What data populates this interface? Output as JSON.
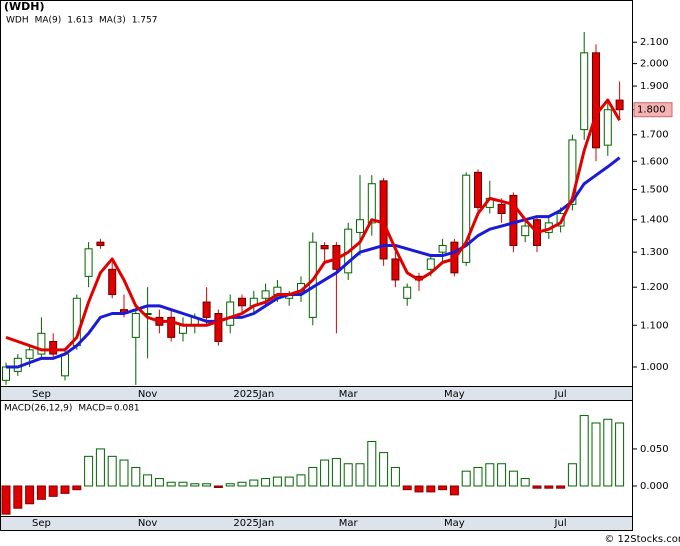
{
  "chart_data": [
    {
      "type": "candlestick",
      "title": "(WDH)",
      "ticker": "WDH",
      "ticker_color": "#008000",
      "categories": [
        null,
        null,
        null,
        "Sep",
        null,
        null,
        null,
        null,
        null,
        null,
        null,
        null,
        "Nov",
        null,
        null,
        null,
        null,
        null,
        null,
        null,
        null,
        "2025Jan",
        null,
        null,
        null,
        null,
        null,
        null,
        null,
        "Mar",
        null,
        null,
        null,
        null,
        null,
        null,
        null,
        null,
        "May",
        null,
        null,
        null,
        null,
        null,
        null,
        null,
        null,
        "Jul",
        null,
        null,
        null,
        null,
        null
      ],
      "open": [
        0.97,
        0.99,
        1.02,
        1.03,
        1.06,
        0.98,
        1.05,
        1.23,
        1.33,
        1.25,
        1.14,
        1.07,
        1.13,
        1.12,
        1.12,
        1.08,
        1.1,
        1.16,
        1.13,
        1.1,
        1.17,
        1.15,
        1.17,
        1.18,
        1.17,
        1.19,
        1.12,
        1.32,
        1.32,
        1.24,
        1.36,
        1.39,
        1.53,
        1.28,
        1.17,
        1.23,
        1.25,
        1.3,
        1.33,
        1.27,
        1.56,
        1.44,
        1.45,
        1.48,
        1.35,
        1.4,
        1.36,
        1.38,
        1.45,
        1.72,
        2.05,
        1.66,
        1.84
      ],
      "high": [
        1.01,
        1.03,
        1.05,
        1.12,
        1.08,
        1.04,
        1.18,
        1.33,
        1.34,
        1.27,
        1.18,
        1.14,
        1.2,
        1.14,
        1.14,
        1.12,
        1.13,
        1.2,
        1.14,
        1.18,
        1.18,
        1.19,
        1.21,
        1.22,
        1.19,
        1.23,
        1.36,
        1.33,
        1.33,
        1.39,
        1.55,
        1.55,
        1.54,
        1.3,
        1.21,
        1.24,
        1.29,
        1.34,
        1.34,
        1.56,
        1.57,
        1.53,
        1.47,
        1.49,
        1.4,
        1.41,
        1.41,
        1.44,
        1.7,
        2.15,
        2.09,
        1.83,
        1.92
      ],
      "low": [
        0.96,
        0.98,
        1.0,
        1.02,
        1.02,
        0.97,
        1.04,
        1.2,
        1.31,
        1.17,
        1.12,
        0.96,
        1.02,
        1.08,
        1.06,
        1.06,
        1.08,
        1.1,
        1.05,
        1.08,
        1.13,
        1.13,
        1.15,
        1.16,
        1.15,
        1.16,
        1.1,
        1.27,
        1.08,
        1.22,
        1.29,
        1.35,
        1.26,
        1.2,
        1.15,
        1.19,
        1.23,
        1.27,
        1.23,
        1.26,
        1.42,
        1.42,
        1.39,
        1.3,
        1.33,
        1.3,
        1.34,
        1.36,
        1.43,
        1.68,
        1.6,
        1.62,
        1.76
      ],
      "close": [
        1.0,
        1.02,
        1.04,
        1.08,
        1.03,
        1.03,
        1.17,
        1.31,
        1.32,
        1.18,
        1.13,
        1.13,
        1.13,
        1.1,
        1.07,
        1.1,
        1.12,
        1.12,
        1.06,
        1.16,
        1.15,
        1.17,
        1.19,
        1.2,
        1.18,
        1.21,
        1.33,
        1.31,
        1.25,
        1.37,
        1.4,
        1.52,
        1.28,
        1.22,
        1.2,
        1.22,
        1.28,
        1.32,
        1.24,
        1.55,
        1.44,
        1.47,
        1.42,
        1.32,
        1.38,
        1.32,
        1.39,
        1.42,
        1.68,
        2.05,
        1.65,
        1.8,
        1.8
      ],
      "up_color": "#006400",
      "down_color": "#e00000",
      "series": [
        {
          "name": "MA(9)",
          "color": "#1a1ad8",
          "label_value": 1.613,
          "values": [
            1.0,
            1.0,
            1.01,
            1.02,
            1.02,
            1.03,
            1.05,
            1.08,
            1.12,
            1.13,
            1.13,
            1.14,
            1.15,
            1.15,
            1.14,
            1.13,
            1.12,
            1.11,
            1.11,
            1.12,
            1.12,
            1.13,
            1.15,
            1.17,
            1.18,
            1.18,
            1.2,
            1.22,
            1.24,
            1.27,
            1.3,
            1.31,
            1.32,
            1.32,
            1.31,
            1.3,
            1.29,
            1.29,
            1.3,
            1.32,
            1.35,
            1.37,
            1.38,
            1.39,
            1.4,
            1.41,
            1.41,
            1.43,
            1.46,
            1.52,
            1.55,
            1.58,
            1.613
          ]
        },
        {
          "name": "MA(3)",
          "color": "#e00000",
          "label_value": 1.757,
          "values": [
            1.07,
            1.06,
            1.05,
            1.04,
            1.04,
            1.04,
            1.07,
            1.16,
            1.24,
            1.28,
            1.22,
            1.15,
            1.12,
            1.11,
            1.11,
            1.1,
            1.1,
            1.1,
            1.11,
            1.12,
            1.13,
            1.15,
            1.16,
            1.18,
            1.18,
            1.19,
            1.22,
            1.27,
            1.28,
            1.3,
            1.33,
            1.4,
            1.39,
            1.31,
            1.24,
            1.22,
            1.24,
            1.27,
            1.28,
            1.33,
            1.42,
            1.47,
            1.46,
            1.45,
            1.4,
            1.36,
            1.37,
            1.39,
            1.47,
            1.64,
            1.78,
            1.84,
            1.757
          ]
        }
      ],
      "last_price": {
        "value": 1.8,
        "label": "1.800"
      },
      "log_scale": true,
      "ylim": [
        0.9575,
        2.24
      ],
      "yticks": [
        {
          "value": 1.0,
          "label": "1.000"
        },
        {
          "value": 1.1,
          "label": "1.100"
        },
        {
          "value": 1.2,
          "label": "1.200"
        },
        {
          "value": 1.3,
          "label": "1.300"
        },
        {
          "value": 1.4,
          "label": "1.400"
        },
        {
          "value": 1.5,
          "label": "1.500"
        },
        {
          "value": 1.6,
          "label": "1.600"
        },
        {
          "value": 1.7,
          "label": "1.700"
        },
        {
          "value": 1.8,
          "label": "1.800"
        },
        {
          "value": 1.9,
          "label": "1.900"
        },
        {
          "value": 2.0,
          "label": "2.000"
        },
        {
          "value": 2.1,
          "label": "2.100"
        }
      ]
    },
    {
      "type": "bar",
      "title": "MACD(26,12,9)",
      "value_title": "MACD=",
      "value": 0.081,
      "values": [
        -0.038,
        -0.03,
        -0.024,
        -0.018,
        -0.014,
        -0.01,
        -0.005,
        0.04,
        0.05,
        0.04,
        0.035,
        0.025,
        0.015,
        0.01,
        0.005,
        0.005,
        0.003,
        0.003,
        -0.002,
        0.003,
        0.005,
        0.008,
        0.01,
        0.012,
        0.012,
        0.015,
        0.025,
        0.035,
        0.037,
        0.03,
        0.03,
        0.06,
        0.045,
        0.025,
        -0.005,
        -0.008,
        -0.008,
        -0.005,
        -0.012,
        0.02,
        0.025,
        0.03,
        0.03,
        0.02,
        0.01,
        -0.003,
        -0.003,
        -0.003,
        0.03,
        0.095,
        0.085,
        0.09,
        0.085
      ],
      "positive_color": "#006400",
      "negative_color": "#e00000",
      "ylim": [
        -0.0405,
        0.116
      ],
      "yticks": [
        {
          "value": 0.0,
          "label": "0.000"
        },
        {
          "value": 0.05,
          "label": "0.050"
        }
      ]
    }
  ],
  "footer": "© 12Stocks.com"
}
